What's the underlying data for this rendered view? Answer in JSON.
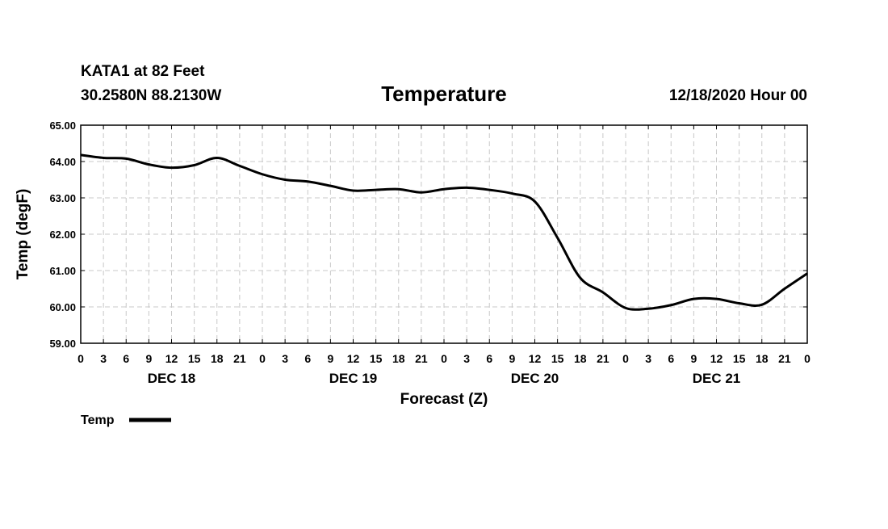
{
  "header": {
    "station": "KATA1 at 82 Feet",
    "coords": "30.2580N 88.2130W",
    "run": "12/18/2020 Hour 00"
  },
  "chart_data": {
    "type": "line",
    "title": "Temperature",
    "xlabel": "Forecast (Z)",
    "ylabel": "Temp (degF)",
    "ylim": [
      59.0,
      65.0
    ],
    "xlim": [
      0,
      96
    ],
    "grid": true,
    "y_ticks": [
      "59.00",
      "60.00",
      "61.00",
      "62.00",
      "63.00",
      "64.00",
      "65.00"
    ],
    "x_tick_labels": [
      "0",
      "3",
      "6",
      "9",
      "12",
      "15",
      "18",
      "21",
      "0",
      "3",
      "6",
      "9",
      "12",
      "15",
      "18",
      "21",
      "0",
      "3",
      "6",
      "9",
      "12",
      "15",
      "18",
      "21",
      "0",
      "3",
      "6",
      "9",
      "12",
      "15",
      "18",
      "21",
      "0"
    ],
    "day_labels": [
      {
        "label": "DEC 18",
        "hour": 12
      },
      {
        "label": "DEC 19",
        "hour": 36
      },
      {
        "label": "DEC 20",
        "hour": 60
      },
      {
        "label": "DEC 21",
        "hour": 84
      }
    ],
    "legend": {
      "label": "Temp",
      "placement": "bottom-left"
    },
    "series": [
      {
        "name": "Temp",
        "color": "#000000",
        "x": [
          0,
          3,
          6,
          9,
          12,
          15,
          18,
          21,
          24,
          27,
          30,
          33,
          36,
          39,
          42,
          45,
          48,
          51,
          54,
          57,
          60,
          63,
          66,
          69,
          72,
          75,
          78,
          81,
          84,
          87,
          90,
          93,
          96
        ],
        "values": [
          64.18,
          64.1,
          64.08,
          63.92,
          63.83,
          63.9,
          64.1,
          63.88,
          63.65,
          63.5,
          63.45,
          63.33,
          63.2,
          63.22,
          63.24,
          63.15,
          63.24,
          63.28,
          63.22,
          63.12,
          62.9,
          61.9,
          60.8,
          60.4,
          59.97,
          59.95,
          60.05,
          60.22,
          60.22,
          60.1,
          60.06,
          60.5,
          60.92
        ]
      }
    ]
  }
}
